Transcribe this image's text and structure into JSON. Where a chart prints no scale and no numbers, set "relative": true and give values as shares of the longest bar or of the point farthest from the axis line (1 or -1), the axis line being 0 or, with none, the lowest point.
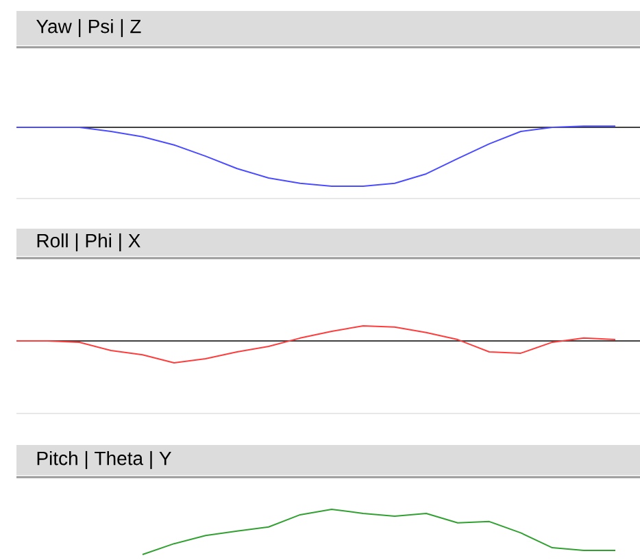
{
  "chart_data": [
    {
      "type": "line",
      "title": "Yaw | Psi | Z",
      "relative": true,
      "categories": [
        null,
        null,
        null,
        null,
        null,
        null,
        null,
        null,
        null,
        null,
        null,
        null,
        null,
        null,
        null,
        null,
        null,
        null,
        null,
        null
      ],
      "series": [
        {
          "color": "#4b4bff",
          "values": [
            0,
            0,
            0,
            -0.07,
            -0.16,
            -0.3,
            -0.49,
            -0.7,
            -0.86,
            -0.95,
            -1,
            -1,
            -0.95,
            -0.79,
            -0.53,
            -0.28,
            -0.07,
            0,
            0.02,
            0.02
          ]
        }
      ]
    },
    {
      "type": "line",
      "title": "Roll | Phi | X",
      "relative": true,
      "categories": [
        null,
        null,
        null,
        null,
        null,
        null,
        null,
        null,
        null,
        null,
        null,
        null,
        null,
        null,
        null,
        null,
        null,
        null,
        null,
        null
      ],
      "series": [
        {
          "color": "#ff3c3c",
          "values": [
            0,
            0,
            -0.06,
            -0.44,
            -0.63,
            -1,
            -0.81,
            -0.5,
            -0.25,
            0.13,
            0.44,
            0.69,
            0.63,
            0.38,
            0.06,
            -0.5,
            -0.56,
            -0.06,
            0.13,
            0.06
          ]
        }
      ]
    },
    {
      "type": "line",
      "title": "Pitch | Theta | Y",
      "relative": true,
      "categories": [
        null,
        null,
        null,
        null,
        null,
        null,
        null,
        null,
        null,
        null,
        null,
        null,
        null,
        null,
        null,
        null,
        null,
        null,
        null,
        null
      ],
      "series": [
        {
          "color": "#30a030",
          "values": [
            null,
            null,
            null,
            null,
            0,
            0.24,
            0.42,
            0.52,
            0.61,
            0.88,
            1,
            0.91,
            0.85,
            0.91,
            0.7,
            0.73,
            0.48,
            0.15,
            0.09,
            0.09
          ]
        }
      ]
    }
  ]
}
